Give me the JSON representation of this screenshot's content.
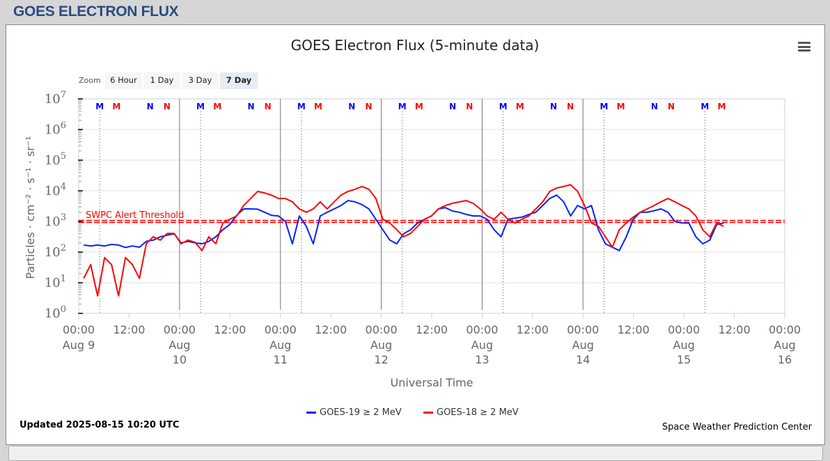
{
  "header": {
    "title": "GOES ELECTRON FLUX"
  },
  "chart": {
    "title": "GOES Electron Flux (5-minute data)",
    "zoom_label": "Zoom",
    "zoom_buttons": [
      "6 Hour",
      "1 Day",
      "3 Day",
      "7 Day"
    ],
    "zoom_active": "7 Day",
    "updated": "Updated 2025-08-15 10:20 UTC",
    "credit": "Space Weather Prediction Center"
  },
  "chart_data": {
    "type": "line",
    "title": "GOES Electron Flux (5-minute data)",
    "xlabel": "Universal Time",
    "ylabel": "Particles · cm⁻² · s⁻¹ · sr⁻¹",
    "yscale": "log",
    "ylim_log10": [
      0,
      7
    ],
    "ytick_exponents": [
      "0",
      "1",
      "2",
      "3",
      "4",
      "5",
      "6",
      "7"
    ],
    "xlim_hours": [
      0,
      168
    ],
    "xticks": [
      {
        "hour": 0,
        "time": "00:00",
        "date": "Aug 9"
      },
      {
        "hour": 12,
        "time": "12:00",
        "date": ""
      },
      {
        "hour": 24,
        "time": "00:00",
        "date": "Aug 10"
      },
      {
        "hour": 36,
        "time": "12:00",
        "date": ""
      },
      {
        "hour": 48,
        "time": "00:00",
        "date": "Aug 11"
      },
      {
        "hour": 60,
        "time": "12:00",
        "date": ""
      },
      {
        "hour": 72,
        "time": "00:00",
        "date": "Aug 12"
      },
      {
        "hour": 84,
        "time": "12:00",
        "date": ""
      },
      {
        "hour": 96,
        "time": "00:00",
        "date": "Aug 13"
      },
      {
        "hour": 108,
        "time": "12:00",
        "date": ""
      },
      {
        "hour": 120,
        "time": "00:00",
        "date": "Aug 14"
      },
      {
        "hour": 132,
        "time": "12:00",
        "date": ""
      },
      {
        "hour": 144,
        "time": "00:00",
        "date": "Aug 15"
      },
      {
        "hour": 156,
        "time": "12:00",
        "date": ""
      },
      {
        "hour": 168,
        "time": "00:00",
        "date": "Aug 16"
      }
    ],
    "day_boundaries_hours": [
      24,
      48,
      72,
      96,
      120
    ],
    "threshold": {
      "label": "SWPC Alert Threshold",
      "value": 1000,
      "color": "#ff0000"
    },
    "markers": [
      {
        "label": "M",
        "hour": 5,
        "color": "#0000ff",
        "line": true
      },
      {
        "label": "M",
        "hour": 9,
        "color": "#ff0000"
      },
      {
        "label": "N",
        "hour": 17,
        "color": "#0000ff"
      },
      {
        "label": "N",
        "hour": 21,
        "color": "#ff0000"
      },
      {
        "label": "M",
        "hour": 29,
        "color": "#0000ff",
        "line": true
      },
      {
        "label": "M",
        "hour": 33,
        "color": "#ff0000"
      },
      {
        "label": "N",
        "hour": 41,
        "color": "#0000ff"
      },
      {
        "label": "N",
        "hour": 45,
        "color": "#ff0000"
      },
      {
        "label": "M",
        "hour": 53,
        "color": "#0000ff",
        "line": true
      },
      {
        "label": "M",
        "hour": 57,
        "color": "#ff0000"
      },
      {
        "label": "N",
        "hour": 65,
        "color": "#0000ff"
      },
      {
        "label": "N",
        "hour": 69,
        "color": "#ff0000"
      },
      {
        "label": "M",
        "hour": 77,
        "color": "#0000ff",
        "line": true
      },
      {
        "label": "M",
        "hour": 81,
        "color": "#ff0000"
      },
      {
        "label": "N",
        "hour": 89,
        "color": "#0000ff"
      },
      {
        "label": "N",
        "hour": 93,
        "color": "#ff0000"
      },
      {
        "label": "M",
        "hour": 101,
        "color": "#0000ff",
        "line": true
      },
      {
        "label": "M",
        "hour": 105,
        "color": "#ff0000"
      },
      {
        "label": "N",
        "hour": 113,
        "color": "#0000ff"
      },
      {
        "label": "N",
        "hour": 117,
        "color": "#ff0000"
      },
      {
        "label": "M",
        "hour": 125,
        "color": "#0000ff",
        "line": true
      },
      {
        "label": "M",
        "hour": 129,
        "color": "#ff0000"
      },
      {
        "label": "N",
        "hour": 137,
        "color": "#0000ff"
      },
      {
        "label": "N",
        "hour": 141,
        "color": "#ff0000"
      },
      {
        "label": "M",
        "hour": 149,
        "color": "#0000ff",
        "line": true
      },
      {
        "label": "M",
        "hour": 153,
        "color": "#ff0000"
      }
    ],
    "series": [
      {
        "name": "GOES-19 ≥ 2 MeV",
        "color": "#0022ff",
        "start_hour": 1.2,
        "step_hours": 1.655,
        "log10_flux": [
          2.23,
          2.2,
          2.23,
          2.2,
          2.25,
          2.23,
          2.15,
          2.2,
          2.16,
          2.35,
          2.39,
          2.5,
          2.55,
          2.6,
          2.3,
          2.35,
          2.3,
          2.27,
          2.35,
          2.5,
          2.73,
          2.9,
          3.2,
          3.41,
          3.41,
          3.4,
          3.3,
          3.2,
          3.18,
          3.0,
          2.27,
          3.18,
          2.84,
          2.27,
          3.18,
          3.3,
          3.41,
          3.52,
          3.68,
          3.64,
          3.55,
          3.41,
          3.07,
          2.73,
          2.39,
          2.27,
          2.6,
          2.73,
          2.95,
          3.07,
          3.18,
          3.41,
          3.45,
          3.34,
          3.3,
          3.23,
          3.18,
          3.18,
          3.07,
          2.73,
          2.5,
          3.07,
          3.11,
          3.14,
          3.23,
          3.3,
          3.52,
          3.75,
          3.86,
          3.64,
          3.18,
          3.52,
          3.41,
          3.52,
          2.73,
          2.27,
          2.16,
          2.05,
          2.5,
          3.07,
          3.3,
          3.3,
          3.35,
          3.41,
          3.3,
          3.0,
          2.95,
          2.95,
          2.5,
          2.27,
          2.39,
          2.9,
          2.95
        ]
      },
      {
        "name": "GOES-18 ≥ 2 MeV",
        "color": "#ff0000",
        "start_hour": 1.2,
        "step_hours": 1.655,
        "log10_flux": [
          1.14,
          1.59,
          0.57,
          1.82,
          1.59,
          0.57,
          1.82,
          1.59,
          1.14,
          2.27,
          2.5,
          2.39,
          2.61,
          2.61,
          2.27,
          2.39,
          2.32,
          2.05,
          2.5,
          2.27,
          2.95,
          3.07,
          3.18,
          3.52,
          3.75,
          3.98,
          3.93,
          3.86,
          3.75,
          3.75,
          3.64,
          3.41,
          3.3,
          3.41,
          3.64,
          3.41,
          3.64,
          3.86,
          3.98,
          4.05,
          4.14,
          4.05,
          3.75,
          3.07,
          2.95,
          2.73,
          2.5,
          2.61,
          2.84,
          3.07,
          3.18,
          3.41,
          3.52,
          3.59,
          3.64,
          3.68,
          3.59,
          3.41,
          3.18,
          3.07,
          3.3,
          3.07,
          2.95,
          3.07,
          3.18,
          3.41,
          3.64,
          3.98,
          4.09,
          4.14,
          4.2,
          3.98,
          3.52,
          2.95,
          2.84,
          2.5,
          2.16,
          2.73,
          2.95,
          3.14,
          3.3,
          3.41,
          3.52,
          3.64,
          3.75,
          3.64,
          3.52,
          3.41,
          3.18,
          2.73,
          2.5,
          2.95,
          2.84
        ]
      }
    ],
    "legend_position": "bottom-center"
  }
}
